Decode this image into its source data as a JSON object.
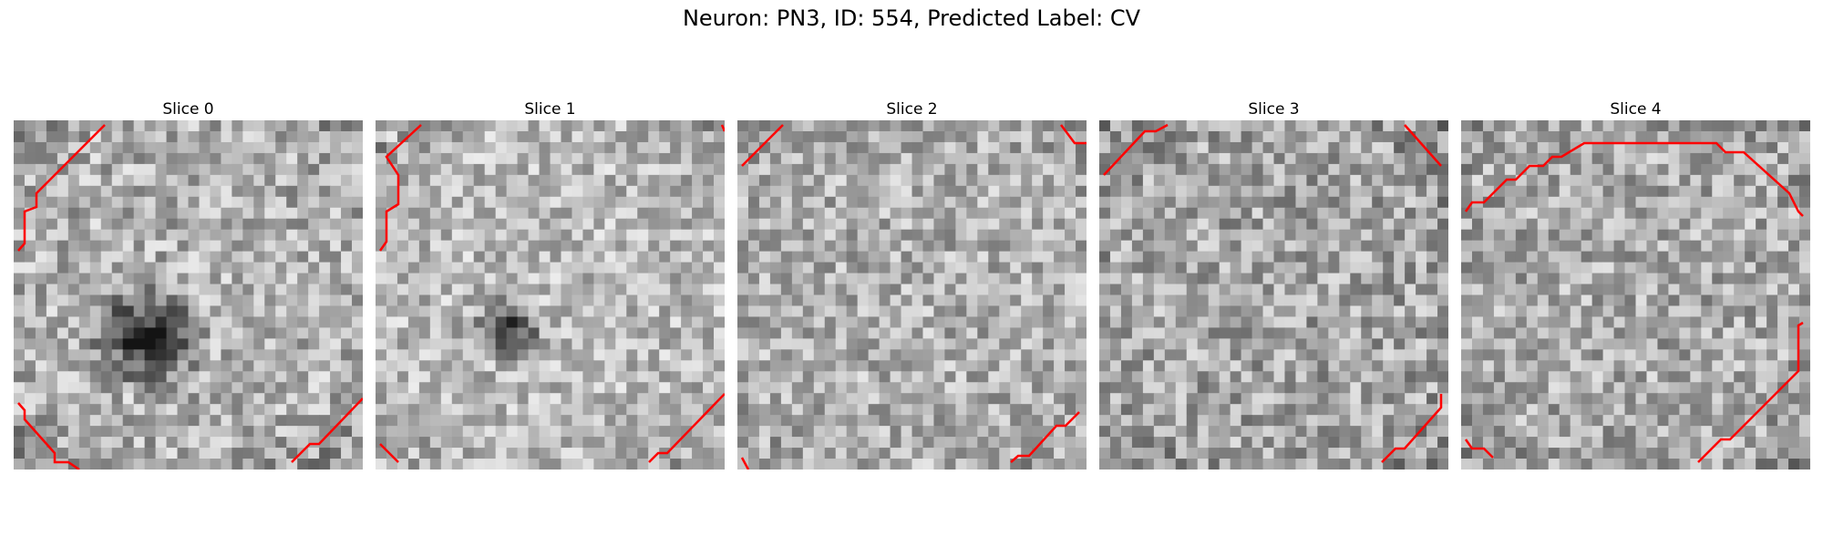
{
  "figure": {
    "title": "Neuron: PN3, ID: 554, Predicted Label: CV"
  },
  "slices": [
    {
      "title": "Slice 0",
      "seed": 11,
      "mean": 175,
      "spread": 58,
      "dark_spot": [
        0.38,
        0.62,
        0.11
      ],
      "corner_dark": 0.55
    },
    {
      "title": "Slice 1",
      "seed": 23,
      "mean": 185,
      "spread": 52,
      "dark_spot": [
        0.38,
        0.6,
        0.07
      ],
      "corner_dark": 0.6
    },
    {
      "title": "Slice 2",
      "seed": 37,
      "mean": 175,
      "spread": 55,
      "dark_spot": null,
      "corner_dark": 0.5
    },
    {
      "title": "Slice 3",
      "seed": 41,
      "mean": 165,
      "spread": 60,
      "dark_spot": null,
      "corner_dark": 0.6
    },
    {
      "title": "Slice 4",
      "seed": 53,
      "mean": 170,
      "spread": 58,
      "dark_spot": null,
      "corner_dark": 0.55
    }
  ],
  "contour_color": "#ff0000"
}
